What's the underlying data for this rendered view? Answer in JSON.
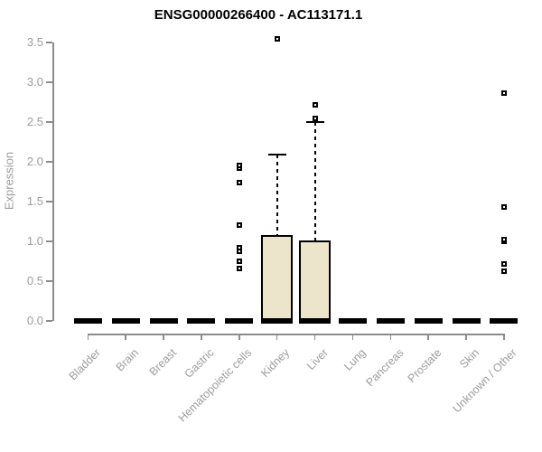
{
  "chart_data": {
    "type": "boxplot",
    "title": "ENSG00000266400 - AC113171.1",
    "ylabel": "Expression",
    "xlabel": "",
    "ylim": [
      0,
      3.5
    ],
    "ytick_labels": [
      "0.0",
      "0.5",
      "1.0",
      "1.5",
      "2.0",
      "2.5",
      "3.0",
      "3.5"
    ],
    "grid": "off",
    "legend": "none",
    "colors": {
      "box_fill": "#ECE5CB",
      "box_border": "#000000",
      "axis": "#8c8c8c",
      "tick_text": "#9c9c9c",
      "title_text": "#000000"
    },
    "categories": [
      "Bladder",
      "Brain",
      "Breast",
      "Gastric",
      "Hematopoietic cells",
      "Kidney",
      "Liver",
      "Lung",
      "Pancreas",
      "Prostate",
      "Skin",
      "Unknown / Other"
    ],
    "series": [
      {
        "category": "Bladder",
        "whisker_low": 0,
        "q1": 0,
        "median": 0,
        "q3": 0,
        "whisker_high": 0,
        "outliers": []
      },
      {
        "category": "Brain",
        "whisker_low": 0,
        "q1": 0,
        "median": 0,
        "q3": 0,
        "whisker_high": 0,
        "outliers": []
      },
      {
        "category": "Breast",
        "whisker_low": 0,
        "q1": 0,
        "median": 0,
        "q3": 0,
        "whisker_high": 0,
        "outliers": []
      },
      {
        "category": "Gastric",
        "whisker_low": 0,
        "q1": 0,
        "median": 0,
        "q3": 0,
        "whisker_high": 0,
        "outliers": []
      },
      {
        "category": "Hematopoietic cells",
        "whisker_low": 0,
        "q1": 0,
        "median": 0,
        "q3": 0,
        "whisker_high": 0,
        "outliers": [
          0.66,
          0.75,
          0.87,
          0.92,
          1.21,
          1.74,
          1.92,
          1.96
        ]
      },
      {
        "category": "Kidney",
        "whisker_low": 0,
        "q1": 0,
        "median": 0,
        "q3": 1.08,
        "whisker_high": 2.09,
        "outliers": [
          3.55
        ]
      },
      {
        "category": "Liver",
        "whisker_low": 0,
        "q1": 0,
        "median": 0,
        "q3": 1.01,
        "whisker_high": 2.5,
        "outliers": [
          2.55,
          2.72
        ]
      },
      {
        "category": "Lung",
        "whisker_low": 0,
        "q1": 0,
        "median": 0,
        "q3": 0,
        "whisker_high": 0,
        "outliers": []
      },
      {
        "category": "Pancreas",
        "whisker_low": 0,
        "q1": 0,
        "median": 0,
        "q3": 0,
        "whisker_high": 0,
        "outliers": []
      },
      {
        "category": "Prostate",
        "whisker_low": 0,
        "q1": 0,
        "median": 0,
        "q3": 0,
        "whisker_high": 0,
        "outliers": []
      },
      {
        "category": "Skin",
        "whisker_low": 0,
        "q1": 0,
        "median": 0,
        "q3": 0,
        "whisker_high": 0,
        "outliers": []
      },
      {
        "category": "Unknown / Other",
        "whisker_low": 0,
        "q1": 0,
        "median": 0,
        "q3": 0,
        "whisker_high": 0,
        "outliers": [
          0.62,
          0.72,
          1.0,
          1.02,
          1.43,
          2.86
        ]
      }
    ]
  }
}
